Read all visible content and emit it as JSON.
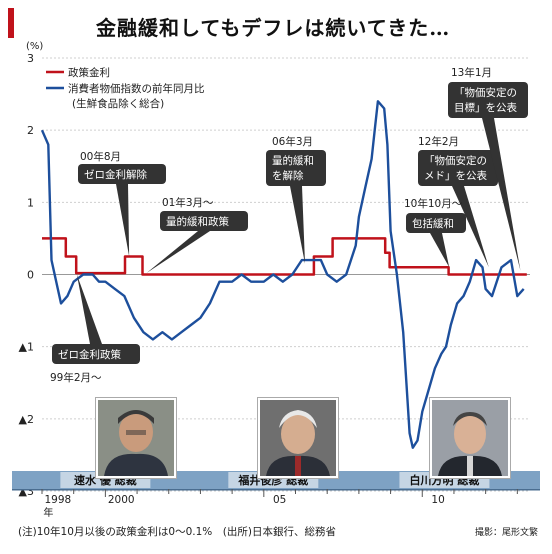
{
  "title": "金融緩和してもデフレは続いてきた…",
  "note": "(注)10年10月以後の政策金利は0～0.1%　(出所)日本銀行、総務省",
  "credit": "撮影：尾形文繁",
  "colors": {
    "policy": "#c0121b",
    "cpi": "#1d4f9c",
    "band": "#7ea2c4",
    "bubble": "#333333"
  },
  "chart_data": {
    "type": "line",
    "unit": "(%)",
    "y_ticks": [
      "3",
      "2",
      "1",
      "0",
      "▲1",
      "▲2",
      "▲3"
    ],
    "ylim": [
      -3,
      3
    ],
    "x_ticks": [
      "1998",
      "2000",
      "05",
      "10"
    ],
    "x_tick_sub": "年",
    "legend": [
      "政策金利",
      "消費者物価指数の前年同月比",
      "(生鮮食品除く総合)"
    ],
    "series": [
      {
        "name": "政策金利",
        "color": "#c0121b",
        "points": [
          [
            1998.0,
            0.5
          ],
          [
            1998.75,
            0.5
          ],
          [
            1998.75,
            0.25
          ],
          [
            1999.08,
            0.25
          ],
          [
            1999.08,
            0.02
          ],
          [
            2000.62,
            0.02
          ],
          [
            2000.62,
            0.25
          ],
          [
            2001.17,
            0.25
          ],
          [
            2001.17,
            0.0
          ],
          [
            2006.58,
            0.0
          ],
          [
            2006.58,
            0.25
          ],
          [
            2007.17,
            0.25
          ],
          [
            2007.17,
            0.5
          ],
          [
            2008.83,
            0.5
          ],
          [
            2008.83,
            0.3
          ],
          [
            2008.97,
            0.3
          ],
          [
            2008.97,
            0.1
          ],
          [
            2010.83,
            0.1
          ],
          [
            2010.83,
            0.0
          ],
          [
            2013.3,
            0.0
          ]
        ]
      },
      {
        "name": "消費者物価指数の前年同月比",
        "color": "#1d4f9c",
        "points": [
          [
            1998.0,
            2.0
          ],
          [
            1998.2,
            1.8
          ],
          [
            1998.3,
            0.2
          ],
          [
            1998.5,
            -0.2
          ],
          [
            1998.6,
            -0.4
          ],
          [
            1998.8,
            -0.3
          ],
          [
            1999.0,
            -0.1
          ],
          [
            1999.3,
            0.0
          ],
          [
            1999.6,
            0.0
          ],
          [
            1999.8,
            -0.1
          ],
          [
            2000.0,
            -0.1
          ],
          [
            2000.3,
            -0.2
          ],
          [
            2000.6,
            -0.3
          ],
          [
            2000.9,
            -0.6
          ],
          [
            2001.2,
            -0.8
          ],
          [
            2001.5,
            -0.9
          ],
          [
            2001.8,
            -0.8
          ],
          [
            2002.1,
            -0.9
          ],
          [
            2002.4,
            -0.8
          ],
          [
            2002.7,
            -0.7
          ],
          [
            2003.0,
            -0.6
          ],
          [
            2003.3,
            -0.4
          ],
          [
            2003.6,
            -0.1
          ],
          [
            2004.0,
            -0.1
          ],
          [
            2004.3,
            0.0
          ],
          [
            2004.6,
            -0.1
          ],
          [
            2005.0,
            -0.1
          ],
          [
            2005.3,
            0.0
          ],
          [
            2005.6,
            -0.1
          ],
          [
            2005.9,
            0.0
          ],
          [
            2006.2,
            0.2
          ],
          [
            2006.5,
            0.2
          ],
          [
            2006.8,
            0.2
          ],
          [
            2007.0,
            0.0
          ],
          [
            2007.3,
            -0.1
          ],
          [
            2007.6,
            0.0
          ],
          [
            2007.9,
            0.4
          ],
          [
            2008.0,
            0.8
          ],
          [
            2008.2,
            1.2
          ],
          [
            2008.4,
            1.6
          ],
          [
            2008.5,
            2.0
          ],
          [
            2008.6,
            2.4
          ],
          [
            2008.8,
            2.3
          ],
          [
            2008.9,
            1.8
          ],
          [
            2009.0,
            0.6
          ],
          [
            2009.2,
            0.0
          ],
          [
            2009.4,
            -0.8
          ],
          [
            2009.5,
            -1.5
          ],
          [
            2009.6,
            -2.2
          ],
          [
            2009.7,
            -2.4
          ],
          [
            2009.85,
            -2.3
          ],
          [
            2010.0,
            -1.9
          ],
          [
            2010.2,
            -1.6
          ],
          [
            2010.4,
            -1.3
          ],
          [
            2010.6,
            -1.1
          ],
          [
            2010.75,
            -1.0
          ],
          [
            2010.9,
            -0.7
          ],
          [
            2011.1,
            -0.4
          ],
          [
            2011.3,
            -0.3
          ],
          [
            2011.5,
            -0.1
          ],
          [
            2011.7,
            0.2
          ],
          [
            2011.9,
            0.1
          ],
          [
            2012.0,
            -0.2
          ],
          [
            2012.2,
            -0.3
          ],
          [
            2012.5,
            0.1
          ],
          [
            2012.8,
            0.2
          ],
          [
            2013.0,
            -0.3
          ],
          [
            2013.2,
            -0.2
          ]
        ]
      }
    ],
    "callouts": [
      {
        "text": "00年8月",
        "boxed": false
      },
      {
        "text": "ゼロ金利解除",
        "boxed": true
      },
      {
        "text": "01年3月～",
        "boxed": false
      },
      {
        "text": "量的緩和政策",
        "boxed": true
      },
      {
        "text": "06年3月",
        "boxed": false
      },
      {
        "text": "量的緩和",
        "text2": "を解除",
        "boxed": true
      },
      {
        "text": "ゼロ金利政策",
        "boxed": true
      },
      {
        "text": "99年2月～",
        "boxed": false
      },
      {
        "text": "12年2月",
        "boxed": false
      },
      {
        "text": "「物価安定の",
        "text2": "メド」を公表",
        "boxed": true
      },
      {
        "text": "10年10月～",
        "boxed": false
      },
      {
        "text": "包括緩和",
        "boxed": true
      },
      {
        "text": "13年1月",
        "boxed": false
      },
      {
        "text": "「物価安定の",
        "text2": "目標」を公表",
        "boxed": true
      }
    ],
    "governors": [
      "速水 優 総裁",
      "福井俊彦 総裁",
      "白川方明 総裁"
    ]
  }
}
